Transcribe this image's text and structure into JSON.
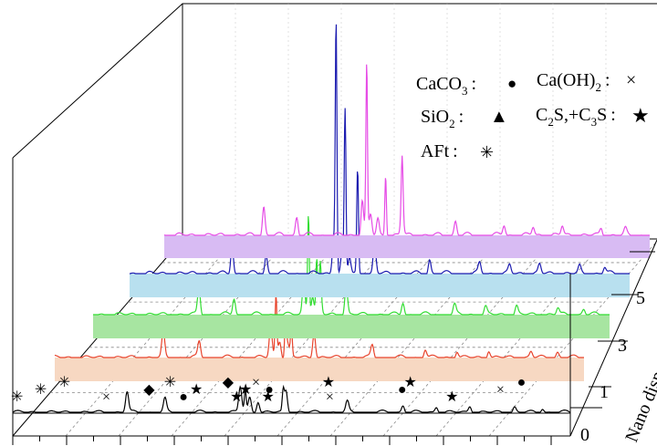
{
  "chart_data": {
    "type": "line",
    "layout": "3d-waterfall",
    "grid": true,
    "legend_position": "top-right",
    "z_axis": {
      "label": "Nano dispe",
      "ticks": [
        "0",
        "1",
        "3",
        "5"
      ]
    },
    "legend": [
      {
        "formula": "CaCO",
        "sub": "3",
        "suffix": " :",
        "symbol": "●"
      },
      {
        "formula": "Ca(OH)",
        "sub": "2",
        "suffix": " :",
        "symbol": "×"
      },
      {
        "formula": "SiO",
        "sub": "2",
        "suffix": " :",
        "symbol": "▲"
      },
      {
        "formula": "C",
        "sub": "2",
        "suffix": "S,+C",
        "sub2": "3",
        "suffix2": "S :",
        "symbol": "★"
      },
      {
        "formula": "AFt",
        "sub": "",
        "suffix": " :",
        "symbol": "✳"
      }
    ],
    "series": [
      {
        "level": "0",
        "color": "#000000",
        "fill": "none"
      },
      {
        "level": "1",
        "color": "#e8442c",
        "fill": "#f7d8c2"
      },
      {
        "level": "3",
        "color": "#33dd33",
        "fill": "#a7e5a1"
      },
      {
        "level": "5",
        "color": "#1c1cb0",
        "fill": "#b8e0ef"
      },
      {
        "level": "7",
        "color": "#e64ce6",
        "fill": "#d8bbf3"
      }
    ],
    "phase_markers": [
      {
        "series": "0",
        "symbol": "✳",
        "x": 0.01
      },
      {
        "series": "0",
        "symbol": "✳",
        "x": 0.065
      },
      {
        "series": "0",
        "symbol": "✳",
        "x": 0.12
      },
      {
        "series": "0",
        "symbol": "×",
        "x": 0.218
      },
      {
        "series": "0",
        "symbol": "◆",
        "x": 0.318
      },
      {
        "series": "0",
        "symbol": "✳",
        "x": 0.367
      },
      {
        "series": "0",
        "symbol": "●",
        "x": 0.398
      },
      {
        "series": "0",
        "symbol": "★",
        "x": 0.428
      },
      {
        "series": "0",
        "symbol": "◆",
        "x": 0.502
      },
      {
        "series": "0",
        "symbol": "★",
        "x": 0.522
      },
      {
        "series": "0",
        "symbol": "★",
        "x": 0.543
      },
      {
        "series": "0",
        "symbol": "×",
        "x": 0.567
      },
      {
        "series": "0",
        "symbol": "★",
        "x": 0.595
      },
      {
        "series": "0",
        "symbol": "●",
        "x": 0.598
      },
      {
        "series": "0",
        "symbol": "★",
        "x": 0.736
      },
      {
        "series": "0",
        "symbol": "×",
        "x": 0.739
      },
      {
        "series": "0",
        "symbol": "●",
        "x": 0.908
      },
      {
        "series": "0",
        "symbol": "★",
        "x": 0.927
      },
      {
        "series": "0",
        "symbol": "★",
        "x": 1.024
      },
      {
        "series": "0",
        "symbol": "×",
        "x": 1.137
      },
      {
        "series": "0",
        "symbol": "●",
        "x": 1.186
      }
    ]
  }
}
